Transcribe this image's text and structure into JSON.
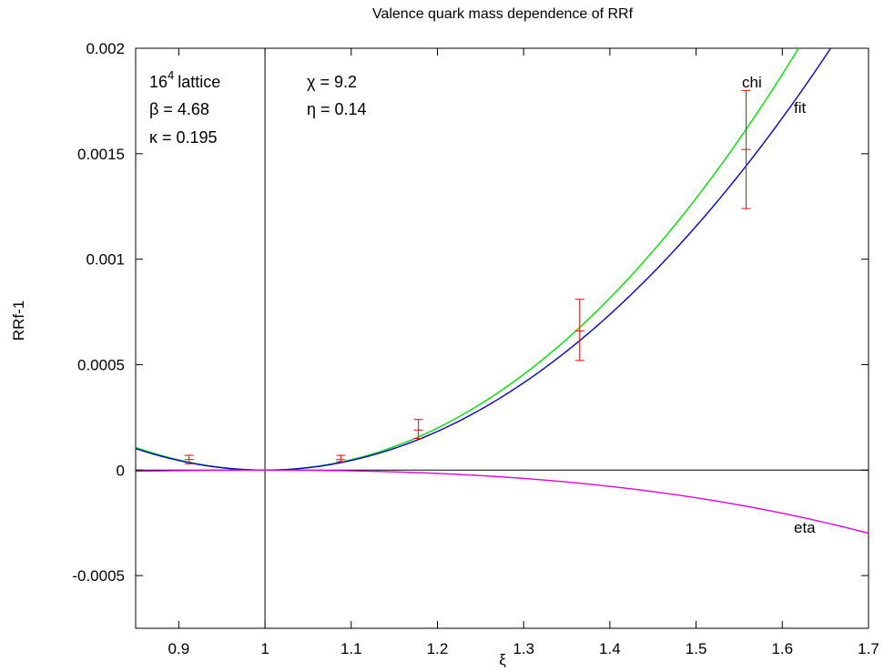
{
  "chart_data": {
    "type": "line",
    "title": "Valence quark mass dependence of RRf",
    "xlabel": "ξ",
    "ylabel": "RRf-1",
    "xlim": [
      0.85,
      1.7
    ],
    "ylim": [
      -0.00075,
      0.002
    ],
    "xticks": [
      0.9,
      1.0,
      1.1,
      1.2,
      1.3,
      1.4,
      1.5,
      1.6,
      1.7
    ],
    "xtick_labels": [
      "0.9",
      "1",
      "1.1",
      "1.2",
      "1.3",
      "1.4",
      "1.5",
      "1.6",
      "1.7"
    ],
    "yticks": [
      -0.0005,
      0,
      0.0005,
      0.001,
      0.0015,
      0.002
    ],
    "ytick_labels": [
      "-0.0005",
      "0",
      "0.0005",
      "0.001",
      "0.0015",
      "0.002"
    ],
    "grid": false,
    "reference_lines": {
      "x": 1.0,
      "y": 0
    },
    "annotations": {
      "lattice": "16",
      "lattice_exp": "4",
      "lattice_word": "lattice",
      "beta": "β = 4.68",
      "kappa": "κ = 0.195",
      "chi_value": "χ = 9.2",
      "eta_value": "η = 0.14"
    },
    "series": [
      {
        "name": "chi",
        "color": "#00dd00",
        "a": 0.00487,
        "b": 0.00057
      },
      {
        "name": "fit",
        "color": "#0000cc",
        "a": 0.00456,
        "b": 0.00013
      },
      {
        "name": "eta",
        "color": "#dd00dd",
        "a": -0.00031,
        "b": -0.00043
      }
    ],
    "points": {
      "color": "#ff0000",
      "x": [
        0.912,
        1.088,
        1.178,
        1.365,
        1.558
      ],
      "y": [
        5e-05,
        5e-05,
        0.00019,
        0.00066,
        0.00152
      ],
      "err_low": [
        3e-05,
        4e-05,
        0.00015,
        0.00052,
        0.00124
      ],
      "err_high": [
        7e-05,
        7e-05,
        0.00024,
        0.00081,
        0.0018
      ]
    }
  }
}
